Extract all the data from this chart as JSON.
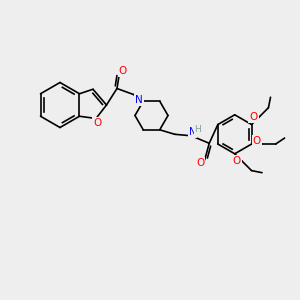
{
  "bg_color": "#eeeeee",
  "bond_color": "#000000",
  "atom_colors": {
    "O": "#ff0000",
    "N": "#0000ff",
    "H": "#7f9f9f",
    "C": "#000000"
  },
  "line_width": 1.2,
  "font_size": 7.5
}
